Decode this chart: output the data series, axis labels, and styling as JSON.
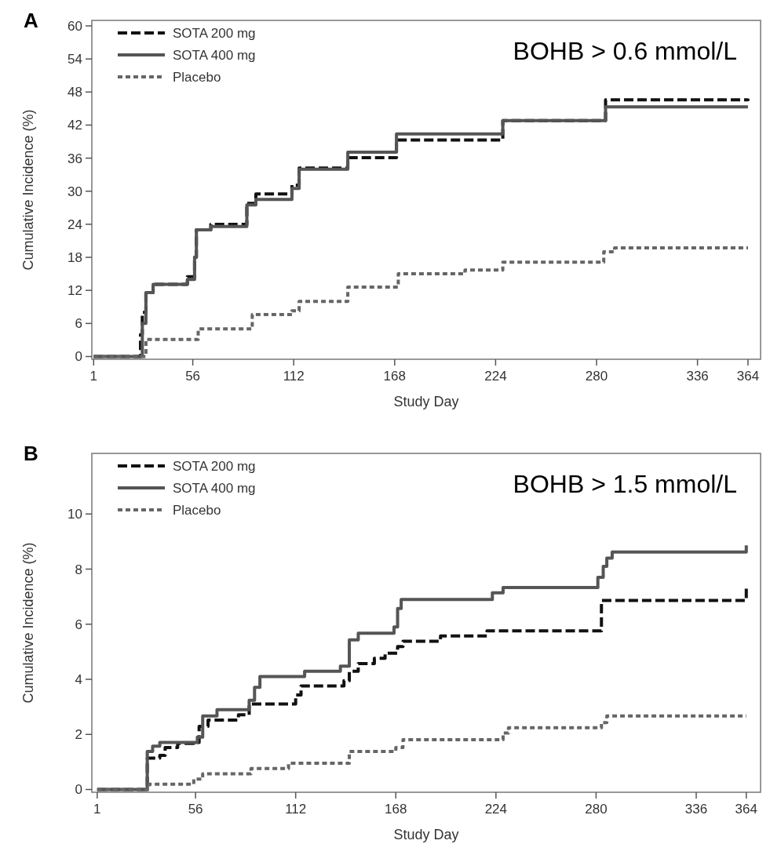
{
  "chart_data": [
    {
      "type": "step",
      "title": "A",
      "xlabel": "Study Day",
      "ylabel": "Cumulative Incidence (%)",
      "annotations": [
        "BOHB > 0.6 mmol/L"
      ],
      "xlim": [
        0,
        371
      ],
      "xticks": [
        1,
        56,
        112,
        168,
        224,
        280,
        336,
        364
      ],
      "ylim": [
        -0.5,
        61
      ],
      "yticks": [
        0,
        6,
        12,
        18,
        24,
        30,
        36,
        42,
        48,
        54,
        60
      ],
      "legend": "top left",
      "grid": false,
      "series": [
        {
          "name": "SOTA 200 mg",
          "color": "#111111",
          "line_style": "dashed",
          "x": [
            1,
            25,
            27,
            28,
            30,
            34,
            53,
            57,
            58,
            66,
            84,
            86,
            91,
            107,
            111,
            115,
            140,
            142,
            168,
            169,
            224,
            228,
            279,
            285,
            363,
            364
          ],
          "values": [
            0,
            0,
            4,
            8,
            11.6,
            13.1,
            14.5,
            18,
            23,
            24,
            24,
            27.8,
            29.5,
            29.5,
            31.1,
            34.2,
            34.2,
            36.1,
            36.1,
            39.3,
            39.3,
            42.8,
            42.8,
            46.6,
            46.6,
            46.8
          ]
        },
        {
          "name": "SOTA 400 mg",
          "color": "#555555",
          "line_style": "solid",
          "x": [
            1,
            25,
            28,
            30,
            34,
            53,
            57,
            58,
            66,
            84,
            86,
            91,
            107,
            111,
            115,
            140,
            142,
            168,
            169,
            224,
            228,
            279,
            285,
            364
          ],
          "values": [
            0,
            0,
            6,
            11.6,
            13.1,
            14,
            18,
            23,
            23.6,
            23.6,
            27.5,
            28.5,
            28.5,
            30.5,
            34,
            34,
            37.1,
            37.1,
            40.4,
            40.4,
            42.8,
            42.8,
            45.3,
            45.3
          ]
        },
        {
          "name": "Placebo",
          "color": "#666666",
          "line_style": "dotted",
          "x": [
            1,
            25,
            30,
            57,
            59,
            83,
            89,
            107,
            111,
            115,
            140,
            142,
            165,
            170,
            205,
            207,
            224,
            228,
            279,
            284,
            290,
            364
          ],
          "values": [
            0,
            0,
            3.1,
            3.1,
            5,
            5,
            7.6,
            7.6,
            8.3,
            10,
            10,
            12.6,
            12.6,
            15,
            15,
            15.7,
            15.7,
            17.1,
            17.1,
            19,
            19.7,
            19.7
          ]
        }
      ]
    },
    {
      "type": "step",
      "title": "B",
      "xlabel": "Study Day",
      "ylabel": "Cumulative Incidence (%)",
      "annotations": [
        "BOHB > 1.5 mmol/L"
      ],
      "xlim": [
        -2,
        372
      ],
      "xticks": [
        1,
        56,
        112,
        168,
        224,
        280,
        336,
        364
      ],
      "ylim": [
        -0.1,
        12.2
      ],
      "yticks": [
        0,
        2,
        4,
        6,
        8,
        10
      ],
      "legend": "top left",
      "grid": false,
      "series": [
        {
          "name": "SOTA 200 mg",
          "color": "#111111",
          "line_style": "dashed",
          "x": [
            1,
            28,
            29,
            36,
            39,
            46,
            55,
            58,
            63,
            80,
            86,
            112,
            115,
            139,
            142,
            147,
            156,
            162,
            169,
            172,
            193,
            219,
            283,
            363,
            364
          ],
          "values": [
            0,
            0,
            1.14,
            1.24,
            1.52,
            1.67,
            1.71,
            2.29,
            2.52,
            2.71,
            3.1,
            3.43,
            3.76,
            3.95,
            4.29,
            4.57,
            4.76,
            4.95,
            5.19,
            5.38,
            5.57,
            5.76,
            6.86,
            6.86,
            7.3
          ]
        },
        {
          "name": "SOTA 400 mg",
          "color": "#555555",
          "line_style": "solid",
          "x": [
            1,
            28,
            29,
            32,
            36,
            57,
            60,
            68,
            86,
            89,
            92,
            117,
            137,
            142,
            147,
            167,
            169,
            171,
            222,
            228,
            281,
            284,
            286,
            289,
            363,
            364
          ],
          "values": [
            0,
            0,
            1.38,
            1.57,
            1.71,
            1.9,
            2.67,
            2.9,
            3.24,
            3.71,
            4.1,
            4.29,
            4.48,
            5.43,
            5.67,
            5.9,
            6.57,
            6.9,
            7.14,
            7.33,
            7.7,
            8.1,
            8.4,
            8.62,
            8.62,
            8.86
          ]
        },
        {
          "name": "Placebo",
          "color": "#666666",
          "line_style": "dotted",
          "x": [
            1,
            30,
            55,
            60,
            87,
            108,
            142,
            168,
            172,
            228,
            231,
            283,
            286,
            364
          ],
          "values": [
            0,
            0.19,
            0.38,
            0.57,
            0.76,
            0.95,
            1.38,
            1.52,
            1.81,
            2.05,
            2.24,
            2.43,
            2.67,
            2.67
          ]
        }
      ]
    }
  ]
}
